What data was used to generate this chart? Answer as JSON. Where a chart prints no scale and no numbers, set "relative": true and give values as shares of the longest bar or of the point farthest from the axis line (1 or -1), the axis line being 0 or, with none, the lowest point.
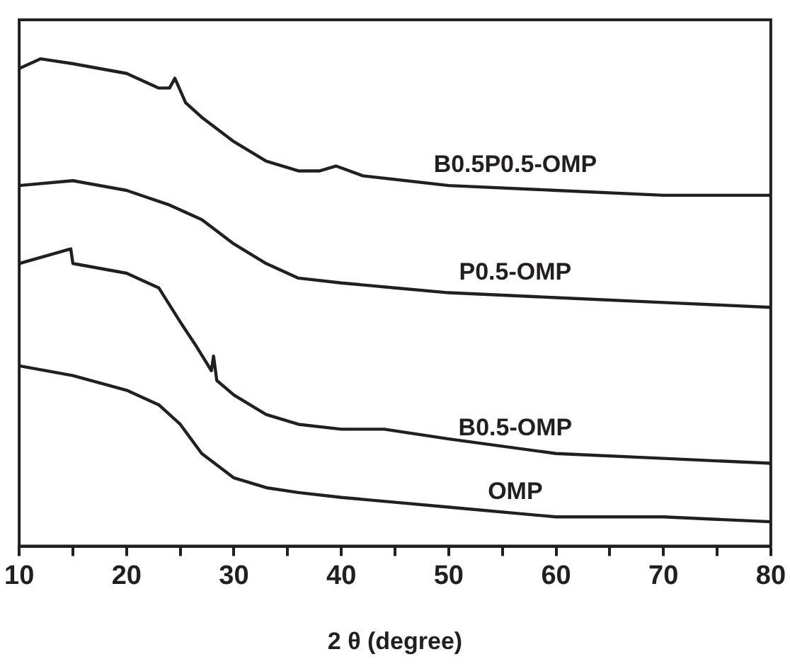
{
  "chart_data": {
    "type": "line",
    "relative": true,
    "xlabel": "2 θ (degree)",
    "xlim": [
      10,
      80
    ],
    "xticks": [
      10,
      {
        "value": 15,
        "label": null
      },
      20,
      {
        "value": 25,
        "label": null
      },
      30,
      {
        "value": 35,
        "label": null
      },
      40,
      {
        "value": 45,
        "label": null
      },
      50,
      {
        "value": 55,
        "label": null
      },
      60,
      {
        "value": 65,
        "label": null
      },
      70,
      {
        "value": 75,
        "label": null
      },
      80
    ],
    "grid": false,
    "legend": false,
    "marker": "none",
    "line_style": "solid",
    "series": [
      {
        "name": "B0.5P0.5-OMP",
        "color": "#231f20",
        "x": [
          10,
          12,
          15,
          20,
          23,
          24,
          24.5,
          25.5,
          27,
          30,
          33,
          36,
          38,
          39.5,
          42,
          50,
          60,
          70,
          80
        ],
        "values": [
          0.98,
          1.0,
          0.99,
          0.97,
          0.94,
          0.94,
          0.96,
          0.91,
          0.88,
          0.83,
          0.79,
          0.77,
          0.77,
          0.78,
          0.76,
          0.74,
          0.73,
          0.72,
          0.72
        ]
      },
      {
        "name": "P0.5-OMP",
        "color": "#231f20",
        "x": [
          10,
          15,
          20,
          24,
          27,
          30,
          33,
          36,
          40,
          45,
          50,
          60,
          70,
          80
        ],
        "values": [
          0.74,
          0.75,
          0.73,
          0.7,
          0.67,
          0.62,
          0.58,
          0.55,
          0.54,
          0.53,
          0.52,
          0.51,
          0.5,
          0.49
        ]
      },
      {
        "name": "B0.5-OMP",
        "color": "#231f20",
        "x": [
          10,
          14.8,
          15,
          20,
          23,
          25,
          26.5,
          27.9,
          28.1,
          28.4,
          30,
          33,
          36,
          40,
          44,
          50,
          60,
          70,
          80
        ],
        "values": [
          0.58,
          0.61,
          0.58,
          0.56,
          0.53,
          0.46,
          0.41,
          0.36,
          0.39,
          0.34,
          0.31,
          0.27,
          0.25,
          0.24,
          0.24,
          0.22,
          0.19,
          0.18,
          0.17
        ]
      },
      {
        "name": "OMP",
        "color": "#231f20",
        "x": [
          10,
          15,
          20,
          23,
          25,
          27,
          30,
          33,
          36,
          40,
          45,
          50,
          60,
          70,
          80
        ],
        "values": [
          0.37,
          0.35,
          0.32,
          0.29,
          0.25,
          0.19,
          0.14,
          0.12,
          0.11,
          0.1,
          0.09,
          0.08,
          0.06,
          0.06,
          0.05
        ]
      }
    ]
  }
}
